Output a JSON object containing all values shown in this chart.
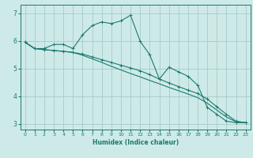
{
  "xlabel": "Humidex (Indice chaleur)",
  "background_color": "#ceeae8",
  "grid_color": "#aacfcc",
  "line_color": "#1a7a6e",
  "xlim": [
    -0.5,
    23.5
  ],
  "ylim": [
    2.8,
    7.3
  ],
  "yticks": [
    3,
    4,
    5,
    6,
    7
  ],
  "xticks": [
    0,
    1,
    2,
    3,
    4,
    5,
    6,
    7,
    8,
    9,
    10,
    11,
    12,
    13,
    14,
    15,
    16,
    17,
    18,
    19,
    20,
    21,
    22,
    23
  ],
  "line1_x": [
    0,
    1,
    2,
    3,
    4,
    5,
    6,
    7,
    8,
    9,
    10,
    11,
    12,
    13,
    14,
    15,
    16,
    17,
    18,
    19,
    20,
    21,
    22,
    23
  ],
  "line1_y": [
    5.95,
    5.72,
    5.72,
    5.87,
    5.87,
    5.72,
    6.22,
    6.55,
    6.68,
    6.62,
    6.72,
    6.92,
    5.98,
    5.5,
    4.62,
    5.05,
    4.88,
    4.72,
    4.4,
    3.6,
    3.35,
    3.1,
    3.05,
    3.05
  ],
  "line2_x": [
    0,
    1,
    2,
    3,
    4,
    5,
    6,
    7,
    8,
    9,
    10,
    11,
    12,
    13,
    14,
    15,
    16,
    17,
    18,
    19,
    20,
    21,
    22,
    23
  ],
  "line2_y": [
    5.95,
    5.72,
    5.68,
    5.65,
    5.62,
    5.58,
    5.52,
    5.42,
    5.32,
    5.22,
    5.12,
    5.02,
    4.92,
    4.78,
    4.62,
    4.48,
    4.35,
    4.22,
    4.1,
    3.9,
    3.62,
    3.35,
    3.1,
    3.05
  ],
  "line3_x": [
    0,
    1,
    2,
    3,
    4,
    5,
    6,
    7,
    8,
    9,
    10,
    11,
    12,
    13,
    14,
    15,
    16,
    17,
    18,
    19,
    20,
    21,
    22,
    23
  ],
  "line3_y": [
    5.95,
    5.72,
    5.68,
    5.65,
    5.62,
    5.58,
    5.48,
    5.35,
    5.22,
    5.08,
    4.95,
    4.82,
    4.7,
    4.57,
    4.45,
    4.32,
    4.2,
    4.08,
    3.95,
    3.75,
    3.5,
    3.25,
    3.08,
    3.05
  ]
}
